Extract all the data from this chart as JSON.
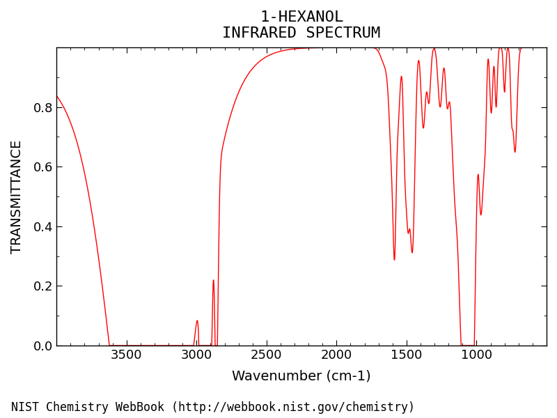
{
  "title_line1": "1-HEXANOL",
  "title_line2": "INFRARED SPECTRUM",
  "xlabel": "Wavenumber (cm-1)",
  "ylabel": "TRANSMITTANCE",
  "footnote": "NIST Chemistry WebBook (http://webbook.nist.gov/chemistry)",
  "xlim_left": 4000,
  "xlim_right": 500,
  "ylim": [
    0.0,
    1.0
  ],
  "xticks": [
    3500,
    3000,
    2500,
    2000,
    1500,
    1000
  ],
  "yticks": [
    0.0,
    0.2,
    0.4,
    0.6,
    0.8
  ],
  "line_color": "#FF0000",
  "background_color": "#FFFFFF",
  "title_fontsize": 16,
  "axis_label_fontsize": 14,
  "tick_fontsize": 13,
  "footnote_fontsize": 12,
  "line_width": 1.0
}
